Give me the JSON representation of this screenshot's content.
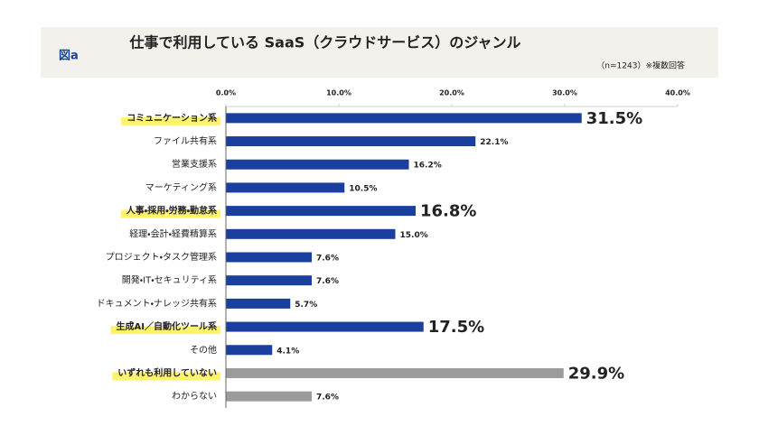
{
  "figure_label": "図a",
  "chart_data": {
    "type": "hbar",
    "title": "仕事で利用している SaaS（クラウドサービス）のジャンル",
    "note": "（n=1243）※複数回答",
    "categories": [
      "コミュニケーション系",
      "ファイル共有系",
      "営業支援系",
      "マーケティング系",
      "人事・採用・労務・勤怠系",
      "経理・会計・経費精算系",
      "プロジェクト・タスク管理系",
      "開発・IT・セキュリティ系",
      "ドキュメント・ナレッジ共有系",
      "生成AI／自動化ツール系",
      "その他",
      "いずれも利用していない",
      "わからない"
    ],
    "values": [
      31.5,
      22.1,
      16.2,
      10.5,
      16.8,
      15.0,
      7.6,
      7.6,
      5.7,
      17.5,
      4.1,
      29.9,
      7.6
    ],
    "value_labels": [
      "31.5%",
      "22.1%",
      "16.2%",
      "10.5%",
      "16.8%",
      "15.0%",
      "7.6%",
      "7.6%",
      "5.7%",
      "17.5%",
      "4.1%",
      "29.9%",
      "7.6%"
    ],
    "colors": [
      "#1b3f9e",
      "#1b3f9e",
      "#1b3f9e",
      "#1b3f9e",
      "#1b3f9e",
      "#1b3f9e",
      "#1b3f9e",
      "#1b3f9e",
      "#1b3f9e",
      "#1b3f9e",
      "#1b3f9e",
      "#9b9b9b",
      "#9b9b9b"
    ],
    "highlight": [
      true,
      false,
      false,
      false,
      true,
      false,
      false,
      false,
      false,
      true,
      false,
      true,
      false
    ],
    "xlim": [
      0,
      40
    ],
    "xticks": [
      {
        "value": 0,
        "label": "0.0%"
      },
      {
        "value": 10,
        "label": "10.0%"
      },
      {
        "value": 20,
        "label": "20.0%"
      },
      {
        "value": 30,
        "label": "30.0%"
      },
      {
        "value": 40,
        "label": "40.0%"
      }
    ]
  }
}
